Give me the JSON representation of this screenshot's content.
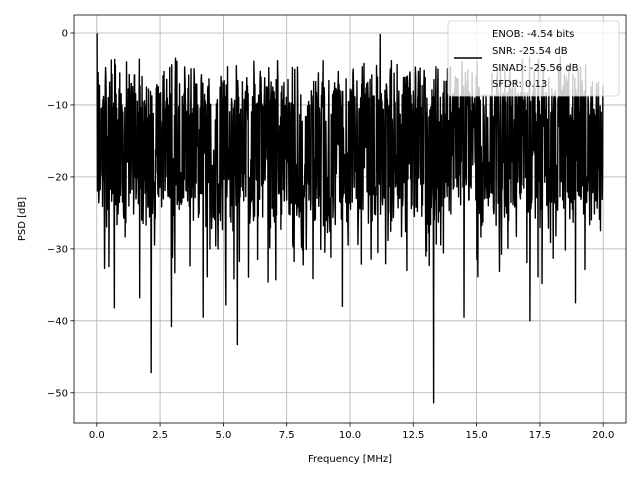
{
  "chart_data": {
    "type": "line",
    "xlabel": "Frequency [MHz]",
    "ylabel": "PSD [dB]",
    "xlim": [
      -0.9,
      20.9
    ],
    "ylim": [
      -54.2,
      2.5
    ],
    "xticks": [
      0.0,
      2.5,
      5.0,
      7.5,
      10.0,
      12.5,
      15.0,
      17.5,
      20.0
    ],
    "xtick_labels": [
      "0.0",
      "2.5",
      "5.0",
      "7.5",
      "10.0",
      "12.5",
      "15.0",
      "17.5",
      "20.0"
    ],
    "yticks": [
      0,
      -10,
      -20,
      -30,
      -40,
      -50
    ],
    "ytick_labels": [
      "0",
      "−10",
      "−20",
      "−30",
      "−40",
      "−50"
    ],
    "grid": true,
    "legend_position": "top-right",
    "legend_lines": [
      "ENOB: -4.54 bits",
      "SNR: -25.54 dB",
      "SINAD: -25.56 dB",
      "SFDR: 0.13"
    ],
    "series": [
      {
        "color": "#000000",
        "x_start": 0.0,
        "x_end": 20.0,
        "n_points": 1500,
        "envelope": {
          "upper_range": [
            -3,
            -10
          ],
          "lower_range": [
            -22,
            -28
          ],
          "center": -15
        },
        "peaks": [
          {
            "x": 0.02,
            "y": -0.1
          },
          {
            "x": 0.05,
            "y": -5.5
          },
          {
            "x": 0.1,
            "y": -21.5
          },
          {
            "x": 11.2,
            "y": -0.2
          }
        ],
        "dips": [
          {
            "x": 0.7,
            "y": -38.2
          },
          {
            "x": 1.7,
            "y": -36.8
          },
          {
            "x": 2.15,
            "y": -47.2
          },
          {
            "x": 2.95,
            "y": -40.8
          },
          {
            "x": 4.2,
            "y": -39.5
          },
          {
            "x": 5.1,
            "y": -37.8
          },
          {
            "x": 5.55,
            "y": -43.3
          },
          {
            "x": 9.7,
            "y": -38.0
          },
          {
            "x": 12.25,
            "y": -33.0
          },
          {
            "x": 13.3,
            "y": -51.4
          },
          {
            "x": 14.5,
            "y": -39.5
          },
          {
            "x": 17.1,
            "y": -40.0
          },
          {
            "x": 18.9,
            "y": -37.5
          }
        ]
      }
    ]
  }
}
